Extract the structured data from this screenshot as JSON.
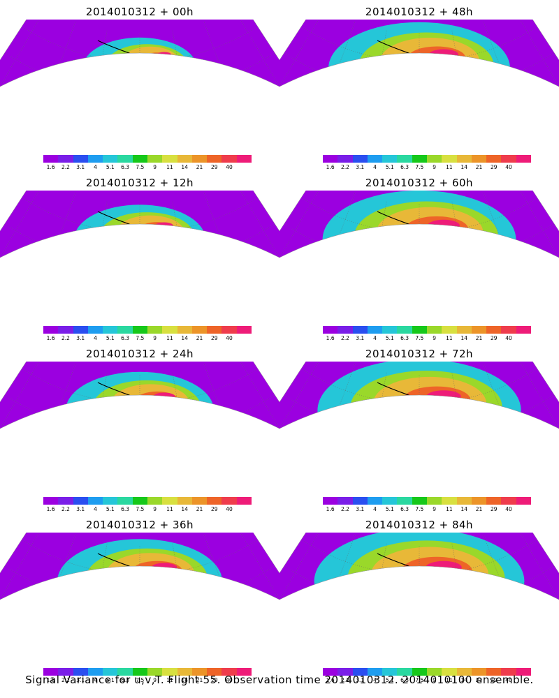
{
  "panels": [
    {
      "title": "2014010312 + 00h",
      "intensity": 0.35
    },
    {
      "title": "2014010312 + 48h",
      "intensity": 0.75
    },
    {
      "title": "2014010312 + 12h",
      "intensity": 0.45
    },
    {
      "title": "2014010312 + 60h",
      "intensity": 0.82
    },
    {
      "title": "2014010312 + 24h",
      "intensity": 0.55
    },
    {
      "title": "2014010312 + 72h",
      "intensity": 0.88
    },
    {
      "title": "2014010312 + 36h",
      "intensity": 0.65
    },
    {
      "title": "2014010312 + 84h",
      "intensity": 0.92
    }
  ],
  "colorbar": {
    "labels": [
      "1.6",
      "2.2",
      "3.1",
      "4",
      "5.1",
      "6.3",
      "7.5",
      "9",
      "11",
      "14",
      "21",
      "29",
      "40"
    ],
    "colors": [
      "#9b00e0",
      "#7a1ee8",
      "#2a4ef0",
      "#1e9df0",
      "#25c6d8",
      "#2ad8a0",
      "#16c81a",
      "#9ad82a",
      "#d8e040",
      "#e8b838",
      "#ec9428",
      "#ee6428",
      "#ef3c4c",
      "#ee1c78"
    ]
  },
  "footer": "Signal Variance for u,v,T. Flight 55. Observation time 2014010312. 2014010100 ensemble."
}
